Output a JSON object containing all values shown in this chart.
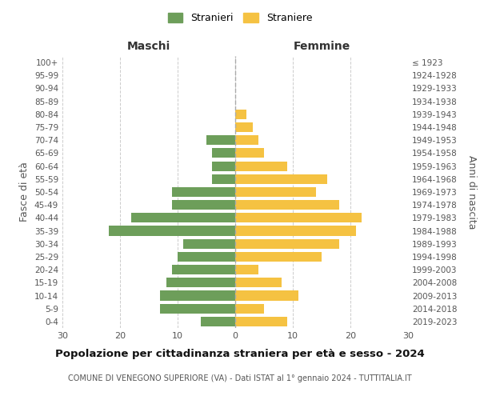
{
  "age_groups": [
    "0-4",
    "5-9",
    "10-14",
    "15-19",
    "20-24",
    "25-29",
    "30-34",
    "35-39",
    "40-44",
    "45-49",
    "50-54",
    "55-59",
    "60-64",
    "65-69",
    "70-74",
    "75-79",
    "80-84",
    "85-89",
    "90-94",
    "95-99",
    "100+"
  ],
  "birth_years": [
    "2019-2023",
    "2014-2018",
    "2009-2013",
    "2004-2008",
    "1999-2003",
    "1994-1998",
    "1989-1993",
    "1984-1988",
    "1979-1983",
    "1974-1978",
    "1969-1973",
    "1964-1968",
    "1959-1963",
    "1954-1958",
    "1949-1953",
    "1944-1948",
    "1939-1943",
    "1934-1938",
    "1929-1933",
    "1924-1928",
    "≤ 1923"
  ],
  "males": [
    6,
    13,
    13,
    12,
    11,
    10,
    9,
    22,
    18,
    11,
    11,
    4,
    4,
    4,
    5,
    0,
    0,
    0,
    0,
    0,
    0
  ],
  "females": [
    9,
    5,
    11,
    8,
    4,
    15,
    18,
    21,
    22,
    18,
    14,
    16,
    9,
    5,
    4,
    3,
    2,
    0,
    0,
    0,
    0
  ],
  "male_color": "#6d9e5a",
  "female_color": "#f5c242",
  "center_line_color": "#aaaaaa",
  "grid_color": "#cccccc",
  "bg_color": "#ffffff",
  "title": "Popolazione per cittadinanza straniera per età e sesso - 2024",
  "subtitle": "COMUNE DI VENEGONO SUPERIORE (VA) - Dati ISTAT al 1° gennaio 2024 - TUTTITALIA.IT",
  "xlabel_left": "Maschi",
  "xlabel_right": "Femmine",
  "ylabel_left": "Fasce di età",
  "ylabel_right": "Anni di nascita",
  "legend_males": "Stranieri",
  "legend_females": "Straniere",
  "xlim": 30,
  "figsize": [
    6.0,
    5.0
  ],
  "dpi": 100
}
